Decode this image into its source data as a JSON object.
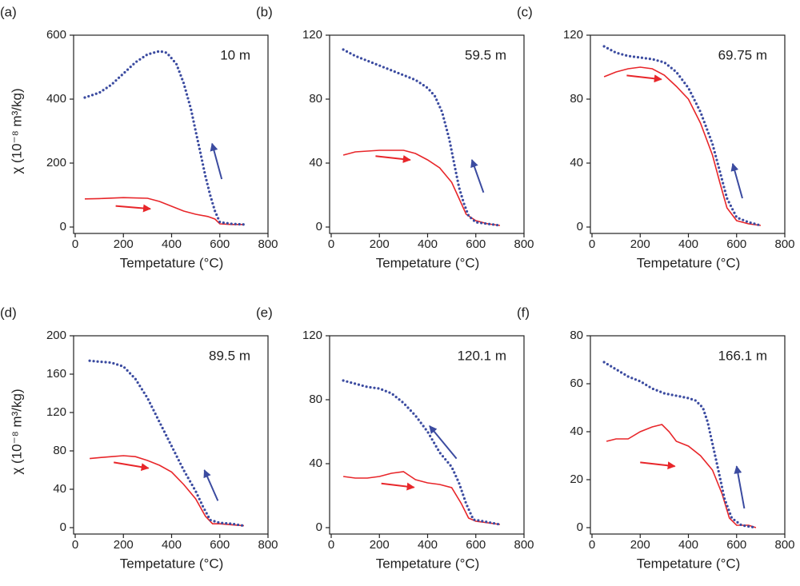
{
  "chart_data": [
    {
      "type": "line",
      "panel_label": "(a)",
      "annotation": "10 m",
      "xlabel": "Tempetature (°C)",
      "ylabel": "χ (10⁻⁸ m³/kg)",
      "xlim": [
        0,
        800
      ],
      "xticks": [
        0,
        200,
        400,
        600,
        800
      ],
      "ylim": [
        0,
        600
      ],
      "yticks": [
        0,
        200,
        400,
        600
      ],
      "series": [
        {
          "color": "#e8262a",
          "style": "solid",
          "x": [
            40,
            100,
            200,
            300,
            350,
            400,
            450,
            500,
            550,
            580,
            600,
            650,
            700
          ],
          "values": [
            88,
            89,
            92,
            90,
            80,
            65,
            50,
            40,
            33,
            25,
            10,
            8,
            8
          ]
        },
        {
          "color": "#3b4ba0",
          "style": "dotted",
          "x": [
            40,
            100,
            150,
            200,
            250,
            300,
            350,
            380,
            420,
            450,
            480,
            500,
            520,
            540,
            560,
            580,
            600,
            650,
            700
          ],
          "values": [
            405,
            420,
            445,
            480,
            515,
            540,
            550,
            545,
            510,
            450,
            370,
            300,
            230,
            160,
            100,
            50,
            15,
            10,
            8
          ]
        }
      ]
    },
    {
      "type": "line",
      "panel_label": "(b)",
      "annotation": "59.5 m",
      "xlabel": "Tempetature (°C)",
      "xlim": [
        0,
        800
      ],
      "xticks": [
        0,
        200,
        400,
        600,
        800
      ],
      "ylim": [
        0,
        120
      ],
      "yticks": [
        0,
        40,
        80,
        120
      ],
      "series": [
        {
          "color": "#e8262a",
          "style": "solid",
          "x": [
            50,
            100,
            200,
            300,
            350,
            400,
            450,
            500,
            530,
            560,
            600,
            650,
            700
          ],
          "values": [
            45,
            47,
            48,
            48,
            46,
            42,
            37,
            28,
            18,
            8,
            4,
            2,
            1
          ]
        },
        {
          "color": "#3b4ba0",
          "style": "dotted",
          "x": [
            50,
            100,
            150,
            200,
            250,
            300,
            350,
            400,
            430,
            460,
            490,
            510,
            530,
            550,
            570,
            600,
            650,
            700
          ],
          "values": [
            111,
            107,
            104,
            101,
            98,
            95,
            92,
            87,
            82,
            72,
            55,
            40,
            25,
            15,
            7,
            3,
            2,
            1
          ]
        }
      ]
    },
    {
      "type": "line",
      "panel_label": "(c)",
      "annotation": "69.75 m",
      "xlabel": "Tempetature (°C)",
      "xlim": [
        0,
        800
      ],
      "xticks": [
        0,
        200,
        400,
        600,
        800
      ],
      "ylim": [
        0,
        120
      ],
      "yticks": [
        0,
        40,
        80,
        120
      ],
      "series": [
        {
          "color": "#e8262a",
          "style": "solid",
          "x": [
            50,
            100,
            150,
            200,
            250,
            300,
            350,
            400,
            450,
            500,
            530,
            560,
            600,
            650,
            700
          ],
          "values": [
            94,
            97,
            99,
            100,
            99,
            95,
            88,
            80,
            65,
            45,
            28,
            12,
            4,
            2,
            1
          ]
        },
        {
          "color": "#3b4ba0",
          "style": "dotted",
          "x": [
            50,
            100,
            150,
            200,
            250,
            300,
            350,
            400,
            450,
            500,
            530,
            560,
            600,
            650,
            700
          ],
          "values": [
            113,
            109,
            107,
            106,
            105,
            103,
            97,
            87,
            72,
            52,
            35,
            18,
            6,
            3,
            1
          ]
        }
      ]
    },
    {
      "type": "line",
      "panel_label": "(d)",
      "annotation": "89.5 m",
      "xlabel": "Tempetature (°C)",
      "ylabel": "χ (10⁻⁸ m³/kg)",
      "xlim": [
        0,
        800
      ],
      "xticks": [
        0,
        200,
        400,
        600,
        800
      ],
      "ylim": [
        0,
        200
      ],
      "yticks": [
        0,
        40,
        80,
        120,
        160,
        200
      ],
      "series": [
        {
          "color": "#e8262a",
          "style": "solid",
          "x": [
            60,
            100,
            150,
            200,
            250,
            300,
            350,
            400,
            450,
            500,
            540,
            570,
            600,
            650,
            700
          ],
          "values": [
            72,
            73,
            74,
            75,
            74,
            70,
            65,
            58,
            45,
            30,
            12,
            4,
            4,
            3,
            2
          ]
        },
        {
          "color": "#3b4ba0",
          "style": "dotted",
          "x": [
            60,
            100,
            150,
            200,
            250,
            300,
            350,
            400,
            450,
            500,
            530,
            560,
            600,
            650,
            700
          ],
          "values": [
            174,
            173,
            172,
            168,
            155,
            135,
            110,
            85,
            60,
            38,
            22,
            8,
            5,
            4,
            2
          ]
        }
      ]
    },
    {
      "type": "line",
      "panel_label": "(e)",
      "annotation": "120.1 m",
      "xlabel": "Tempetature (°C)",
      "xlim": [
        0,
        800
      ],
      "xticks": [
        0,
        200,
        400,
        600,
        800
      ],
      "ylim": [
        0,
        120
      ],
      "yticks": [
        0,
        40,
        80,
        120
      ],
      "series": [
        {
          "color": "#e8262a",
          "style": "solid",
          "x": [
            50,
            100,
            150,
            200,
            250,
            300,
            330,
            350,
            400,
            450,
            500,
            540,
            570,
            600,
            650,
            700
          ],
          "values": [
            32,
            31,
            31,
            32,
            34,
            35,
            32,
            30,
            28,
            27,
            25,
            15,
            6,
            4,
            3,
            2
          ]
        },
        {
          "color": "#3b4ba0",
          "style": "dotted",
          "x": [
            50,
            100,
            150,
            200,
            250,
            300,
            350,
            400,
            450,
            500,
            530,
            560,
            590,
            630,
            700
          ],
          "values": [
            92,
            90,
            88,
            87,
            84,
            78,
            70,
            60,
            47,
            38,
            28,
            15,
            5,
            4,
            2
          ]
        }
      ]
    },
    {
      "type": "line",
      "panel_label": "(f)",
      "annotation": "166.1 m",
      "xlabel": "Tempetature (°C)",
      "xlim": [
        0,
        800
      ],
      "xticks": [
        0,
        200,
        400,
        600,
        800
      ],
      "ylim": [
        0,
        80
      ],
      "yticks": [
        0,
        20,
        40,
        60,
        80
      ],
      "series": [
        {
          "color": "#e8262a",
          "style": "solid",
          "x": [
            60,
            100,
            150,
            200,
            250,
            290,
            320,
            350,
            400,
            450,
            500,
            540,
            570,
            600,
            650,
            680
          ],
          "values": [
            36,
            37,
            37,
            40,
            42,
            43,
            40,
            36,
            34,
            30,
            24,
            14,
            4,
            1,
            1,
            0
          ]
        },
        {
          "color": "#3b4ba0",
          "style": "dotted",
          "x": [
            50,
            100,
            150,
            200,
            250,
            300,
            350,
            400,
            430,
            460,
            480,
            500,
            520,
            550,
            580,
            620,
            680
          ],
          "values": [
            69,
            66,
            63,
            61,
            58,
            56,
            55,
            54,
            53,
            50,
            44,
            35,
            26,
            12,
            4,
            1,
            0
          ]
        }
      ]
    }
  ]
}
